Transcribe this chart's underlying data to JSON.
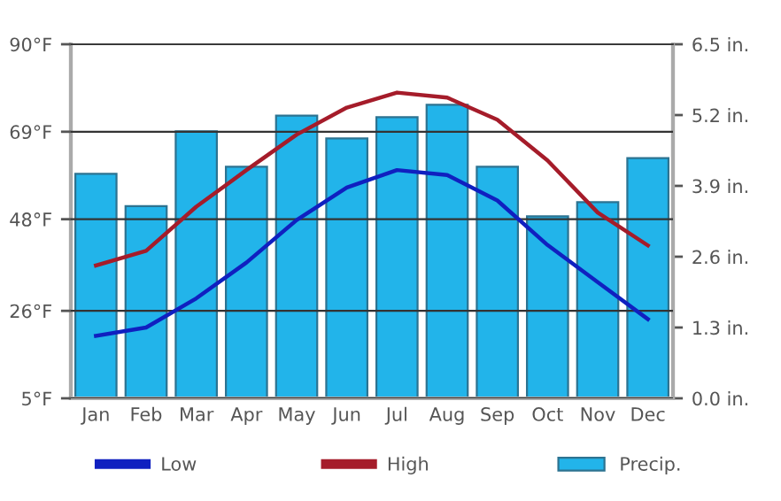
{
  "chart_data": {
    "type": "line",
    "categories": [
      "Jan",
      "Feb",
      "Mar",
      "Apr",
      "May",
      "Jun",
      "Jul",
      "Aug",
      "Sep",
      "Oct",
      "Nov",
      "Dec"
    ],
    "series": [
      {
        "name": "Low",
        "color": "#1020c0",
        "values": [
          20,
          22,
          29,
          37.6,
          47.8,
          55.6,
          59.8,
          58.6,
          52.5,
          41.8,
          32.9,
          24
        ]
      },
      {
        "name": "High",
        "color": "#a51c2a",
        "values": [
          36.9,
          40.4,
          51,
          59.8,
          68.3,
          74.8,
          78.4,
          77.2,
          71.9,
          62.1,
          49.6,
          41.7
        ]
      },
      {
        "name": "Precip.",
        "type": "bar",
        "axis": "y2",
        "color": "#22b4ea",
        "values": [
          4.12,
          3.53,
          4.9,
          4.25,
          5.19,
          4.77,
          5.16,
          5.39,
          4.25,
          3.34,
          3.6,
          4.41
        ]
      }
    ],
    "ylim": [
      5,
      90
    ],
    "yticks": [
      {
        "value": 5,
        "label": "5°F"
      },
      {
        "value": 26,
        "label": "26°F"
      },
      {
        "value": 48,
        "label": "48°F"
      },
      {
        "value": 69,
        "label": "69°F"
      },
      {
        "value": 90,
        "label": "90°F"
      }
    ],
    "y2lim": [
      0,
      6.5
    ],
    "y2ticks": [
      {
        "value": 0,
        "label": "0.0 in."
      },
      {
        "value": 1.3,
        "label": "1.3 in."
      },
      {
        "value": 2.6,
        "label": "2.6 in."
      },
      {
        "value": 3.9,
        "label": "3.9 in."
      },
      {
        "value": 5.2,
        "label": "5.2 in."
      },
      {
        "value": 6.5,
        "label": "6.5 in."
      }
    ],
    "grid": "y",
    "legend": "bottom",
    "marker": "none",
    "line_style": "solid"
  }
}
